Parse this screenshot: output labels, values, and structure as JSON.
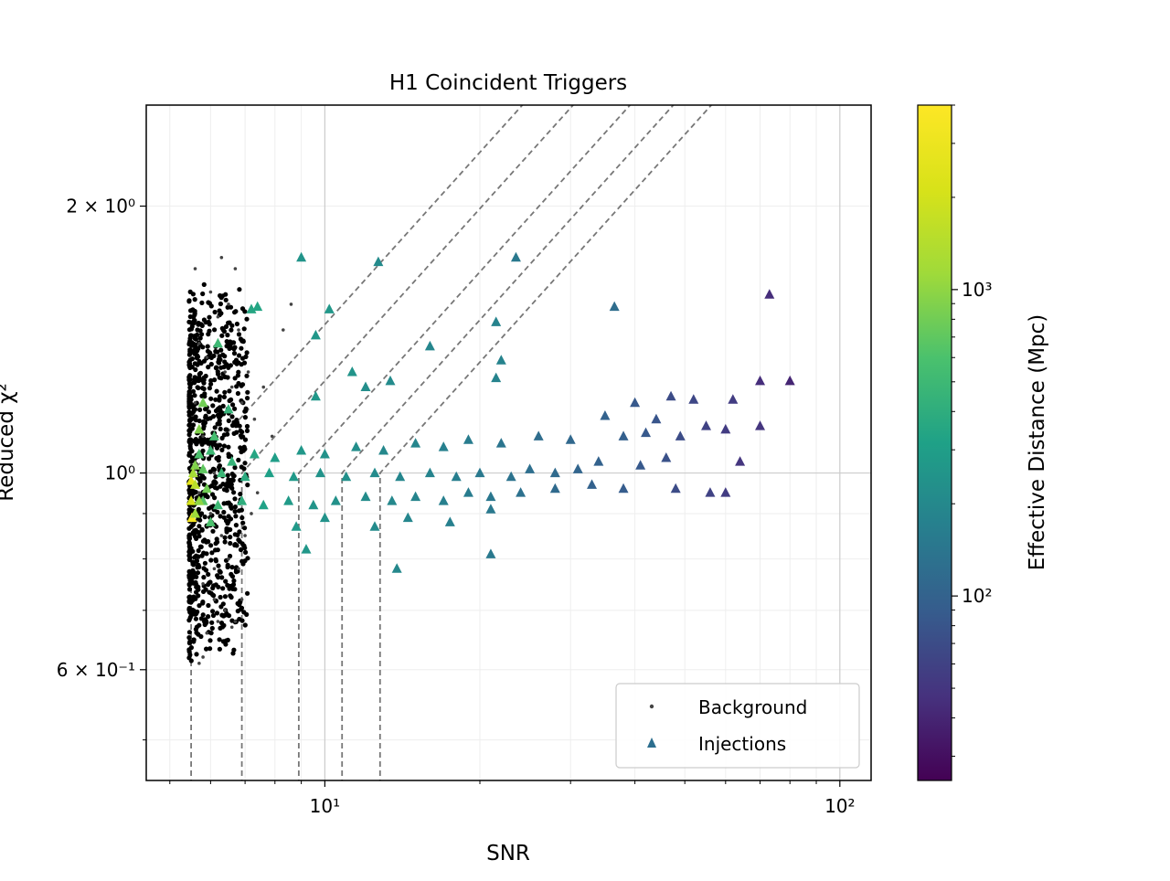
{
  "chart_data": {
    "type": "scatter",
    "title": "H1 Coincident Triggers",
    "xlabel": "SNR",
    "ylabel": "Reduced χ²",
    "xscale": "log",
    "yscale": "log",
    "xlim": [
      4.5,
      115
    ],
    "ylim": [
      0.45,
      2.6
    ],
    "grid": true,
    "x_tick_labels": [
      "10¹",
      "10²"
    ],
    "x_ticks": [
      10,
      100
    ],
    "y_tick_labels": [
      "6 × 10⁻¹",
      "10⁰",
      "2 × 10⁰"
    ],
    "y_ticks": [
      0.6,
      1.0,
      2.0
    ],
    "legend": {
      "placement": "lower-right",
      "entries": [
        "Background",
        "Injections"
      ]
    },
    "colorbar": {
      "label": "Effective Distance (Mpc)",
      "scale": "log",
      "range": [
        25,
        4000
      ],
      "tick_labels": [
        "10²",
        "10³"
      ],
      "ticks": [
        100,
        1000
      ],
      "colormap": "viridis"
    },
    "threshold_curves": [
      {
        "snr_vertical": 5.5,
        "type": "chisq_cut"
      },
      {
        "snr_vertical": 6.9,
        "type": "chisq_cut"
      },
      {
        "snr_vertical": 8.9,
        "type": "chisq_cut"
      },
      {
        "snr_vertical": 10.8,
        "type": "chisq_cut"
      },
      {
        "snr_vertical": 12.8,
        "type": "chisq_cut"
      }
    ],
    "series": [
      {
        "name": "Background",
        "marker": "dot",
        "color": "#000000",
        "points": [
          [
            5.6,
            1.7
          ],
          [
            6.3,
            1.75
          ],
          [
            6.7,
            1.7
          ],
          [
            6.0,
            1.6
          ],
          [
            6.5,
            1.55
          ],
          [
            6.8,
            1.45
          ],
          [
            6.2,
            1.5
          ],
          [
            5.7,
            1.4
          ],
          [
            5.9,
            1.35
          ],
          [
            6.4,
            1.3
          ],
          [
            6.6,
            1.25
          ],
          [
            6.9,
            1.2
          ],
          [
            7.1,
            1.3
          ],
          [
            7.3,
            1.15
          ],
          [
            7.6,
            1.25
          ],
          [
            7.9,
            1.1
          ],
          [
            8.3,
            1.45
          ],
          [
            8.6,
            1.55
          ],
          [
            5.6,
            1.2
          ],
          [
            5.8,
            1.1
          ],
          [
            6.1,
            1.0
          ],
          [
            5.7,
            0.95
          ],
          [
            6.0,
            0.9
          ],
          [
            6.3,
            0.85
          ],
          [
            6.5,
            0.8
          ],
          [
            6.8,
            0.78
          ],
          [
            7.0,
            0.85
          ],
          [
            7.2,
            0.9
          ],
          [
            7.4,
            0.95
          ],
          [
            5.8,
            0.75
          ],
          [
            6.1,
            0.72
          ],
          [
            6.4,
            0.7
          ],
          [
            6.7,
            0.68
          ],
          [
            5.9,
            0.66
          ],
          [
            6.2,
            0.68
          ],
          [
            6.6,
            0.67
          ],
          [
            5.7,
            0.61
          ],
          [
            5.8,
            0.62
          ],
          [
            6.1,
            0.78
          ],
          [
            6.9,
            0.72
          ]
        ]
      },
      {
        "name": "Injections",
        "marker": "triangle",
        "color_by": "effective_distance",
        "points": [
          [
            9.0,
            1.75,
            250
          ],
          [
            12.7,
            1.73,
            210
          ],
          [
            23.5,
            1.75,
            150
          ],
          [
            36.5,
            1.54,
            120
          ],
          [
            73.0,
            1.59,
            45
          ],
          [
            10.2,
            1.53,
            260
          ],
          [
            21.5,
            1.48,
            180
          ],
          [
            16.0,
            1.39,
            190
          ],
          [
            9.6,
            1.43,
            260
          ],
          [
            22.0,
            1.34,
            180
          ],
          [
            11.3,
            1.3,
            250
          ],
          [
            21.5,
            1.28,
            180
          ],
          [
            13.4,
            1.27,
            210
          ],
          [
            9.6,
            1.22,
            260
          ],
          [
            12.0,
            1.25,
            220
          ],
          [
            80.0,
            1.27,
            40
          ],
          [
            70.0,
            1.27,
            45
          ],
          [
            47.0,
            1.22,
            70
          ],
          [
            52.0,
            1.21,
            65
          ],
          [
            62.0,
            1.21,
            55
          ],
          [
            40.0,
            1.2,
            85
          ],
          [
            35.0,
            1.16,
            100
          ],
          [
            44.0,
            1.15,
            80
          ],
          [
            55.0,
            1.13,
            60
          ],
          [
            70.0,
            1.13,
            50
          ],
          [
            60.0,
            1.12,
            55
          ],
          [
            49.0,
            1.1,
            70
          ],
          [
            42.0,
            1.11,
            85
          ],
          [
            38.0,
            1.1,
            95
          ],
          [
            30.0,
            1.09,
            110
          ],
          [
            26.0,
            1.1,
            120
          ],
          [
            22.0,
            1.08,
            140
          ],
          [
            19.0,
            1.09,
            160
          ],
          [
            17.0,
            1.07,
            170
          ],
          [
            15.0,
            1.08,
            190
          ],
          [
            13.0,
            1.06,
            200
          ],
          [
            11.5,
            1.07,
            220
          ],
          [
            10.0,
            1.05,
            240
          ],
          [
            9.0,
            1.06,
            260
          ],
          [
            8.0,
            1.04,
            300
          ],
          [
            7.3,
            1.05,
            350
          ],
          [
            6.6,
            1.03,
            450
          ],
          [
            6.0,
            1.06,
            500
          ],
          [
            5.7,
            1.05,
            600
          ],
          [
            5.6,
            1.02,
            900
          ],
          [
            64.0,
            1.03,
            50
          ],
          [
            46.0,
            1.04,
            75
          ],
          [
            41.0,
            1.02,
            85
          ],
          [
            34.0,
            1.03,
            100
          ],
          [
            31.0,
            1.01,
            105
          ],
          [
            28.0,
            1.0,
            115
          ],
          [
            25.0,
            1.01,
            125
          ],
          [
            23.0,
            0.99,
            135
          ],
          [
            20.0,
            1.0,
            150
          ],
          [
            18.0,
            0.99,
            165
          ],
          [
            16.0,
            1.0,
            180
          ],
          [
            14.0,
            0.99,
            190
          ],
          [
            12.5,
            1.0,
            210
          ],
          [
            11.0,
            0.99,
            230
          ],
          [
            9.8,
            1.0,
            245
          ],
          [
            8.7,
            0.99,
            270
          ],
          [
            7.8,
            1.0,
            310
          ],
          [
            7.0,
            0.99,
            380
          ],
          [
            6.3,
            1.0,
            480
          ],
          [
            5.8,
            1.01,
            700
          ],
          [
            5.5,
            0.98,
            2500
          ],
          [
            5.55,
            1.0,
            1200
          ],
          [
            5.6,
            0.97,
            1500
          ],
          [
            5.52,
            0.89,
            3500
          ],
          [
            5.5,
            0.93,
            2000
          ],
          [
            56.0,
            0.95,
            60
          ],
          [
            48.0,
            0.96,
            70
          ],
          [
            38.0,
            0.96,
            90
          ],
          [
            33.0,
            0.97,
            100
          ],
          [
            28.0,
            0.96,
            115
          ],
          [
            24.0,
            0.95,
            130
          ],
          [
            21.0,
            0.94,
            145
          ],
          [
            19.0,
            0.95,
            160
          ],
          [
            17.0,
            0.93,
            170
          ],
          [
            15.0,
            0.94,
            185
          ],
          [
            13.5,
            0.93,
            200
          ],
          [
            12.0,
            0.94,
            215
          ],
          [
            10.5,
            0.93,
            235
          ],
          [
            9.5,
            0.92,
            250
          ],
          [
            8.5,
            0.93,
            280
          ],
          [
            7.6,
            0.92,
            320
          ],
          [
            6.9,
            0.93,
            400
          ],
          [
            6.2,
            0.92,
            500
          ],
          [
            5.8,
            0.93,
            650
          ],
          [
            5.6,
            0.9,
            1100
          ],
          [
            60.0,
            0.95,
            55
          ],
          [
            21.0,
            0.91,
            150
          ],
          [
            17.5,
            0.88,
            170
          ],
          [
            14.5,
            0.89,
            190
          ],
          [
            12.5,
            0.87,
            210
          ],
          [
            10.0,
            0.89,
            240
          ],
          [
            8.8,
            0.87,
            270
          ],
          [
            21.0,
            0.81,
            150
          ],
          [
            9.2,
            0.82,
            260
          ],
          [
            13.8,
            0.78,
            200
          ],
          [
            6.2,
            1.4,
            500
          ],
          [
            7.2,
            1.53,
            350
          ],
          [
            7.4,
            1.54,
            340
          ],
          [
            6.5,
            1.18,
            450
          ],
          [
            5.8,
            1.2,
            800
          ],
          [
            5.7,
            1.12,
            900
          ],
          [
            6.0,
            0.88,
            600
          ],
          [
            5.7,
            0.93,
            1000
          ],
          [
            5.9,
            0.96,
            800
          ],
          [
            6.1,
            1.1,
            550
          ]
        ]
      }
    ]
  }
}
